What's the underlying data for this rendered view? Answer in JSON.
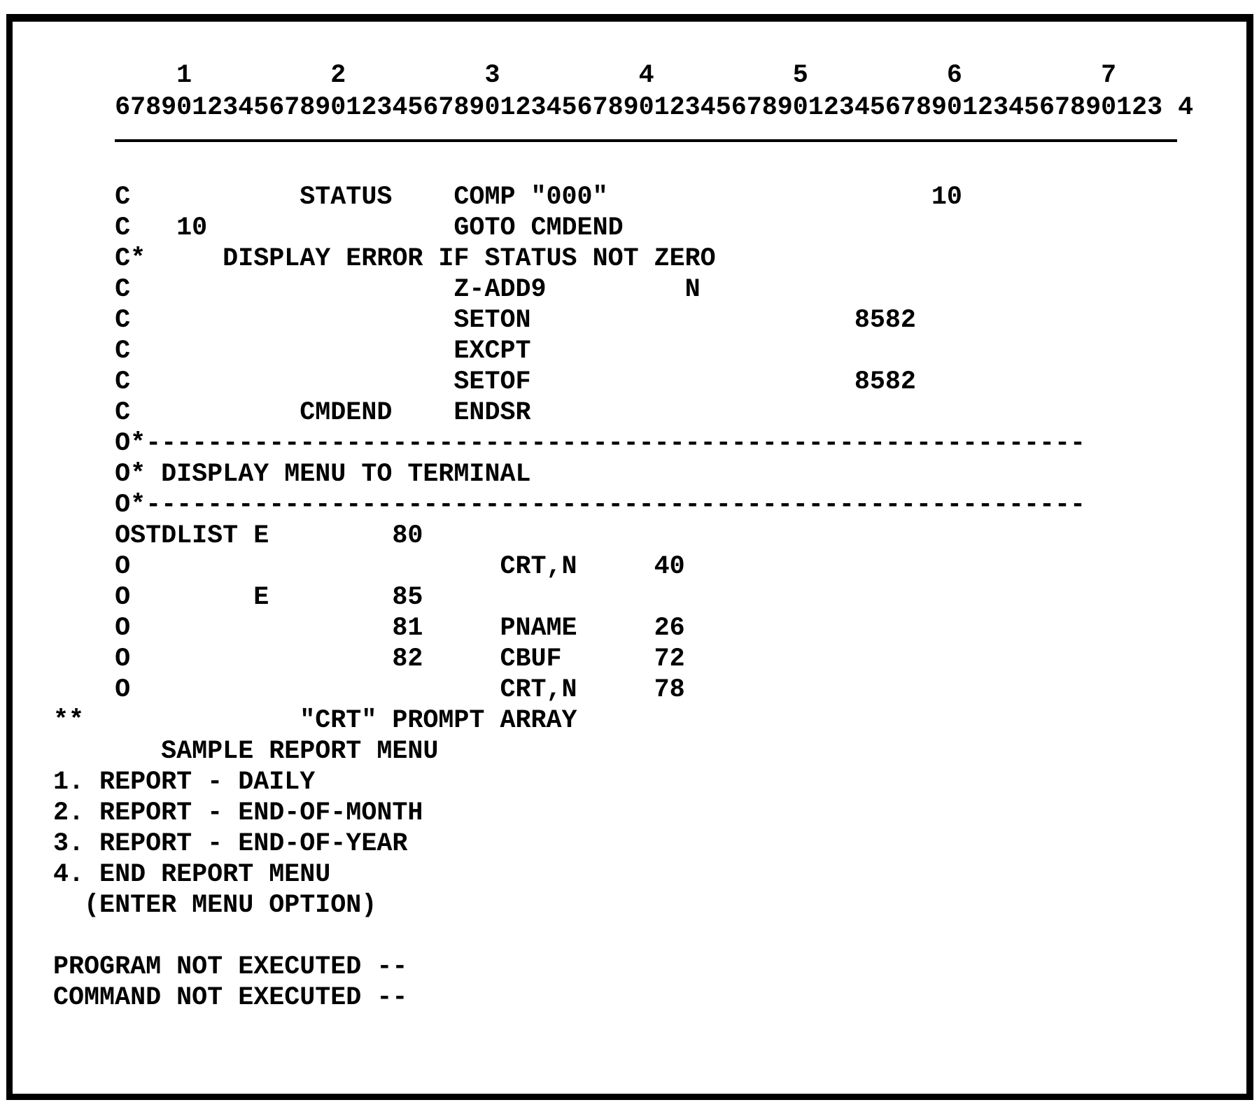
{
  "ruler": {
    "tens": "        1         2         3         4         5         6         7",
    "units": "    67890123456789012345678901234567890123456789012345678901234567890123 4"
  },
  "lines": [
    "    C           STATUS    COMP \"000\"                     10",
    "    C   10                GOTO CMDEND",
    "    C*     DISPLAY ERROR IF STATUS NOT ZERO",
    "    C                     Z-ADD9         N",
    "    C                     SETON                     8582",
    "    C                     EXCPT",
    "    C                     SETOF                     8582",
    "    C           CMDEND    ENDSR",
    "    O*-------------------------------------------------------------",
    "    O* DISPLAY MENU TO TERMINAL",
    "    O*-------------------------------------------------------------",
    "    OSTDLIST E        80",
    "    O                        CRT,N     40",
    "    O        E        85",
    "    O                 81     PNAME     26",
    "    O                 82     CBUF      72",
    "    O                        CRT,N     78",
    "**              \"CRT\" PROMPT ARRAY",
    "       SAMPLE REPORT MENU",
    "1. REPORT - DAILY",
    "2. REPORT - END-OF-MONTH",
    "3. REPORT - END-OF-YEAR",
    "4. END REPORT MENU",
    "  (ENTER MENU OPTION)",
    "",
    "PROGRAM NOT EXECUTED --",
    "COMMAND NOT EXECUTED --"
  ]
}
